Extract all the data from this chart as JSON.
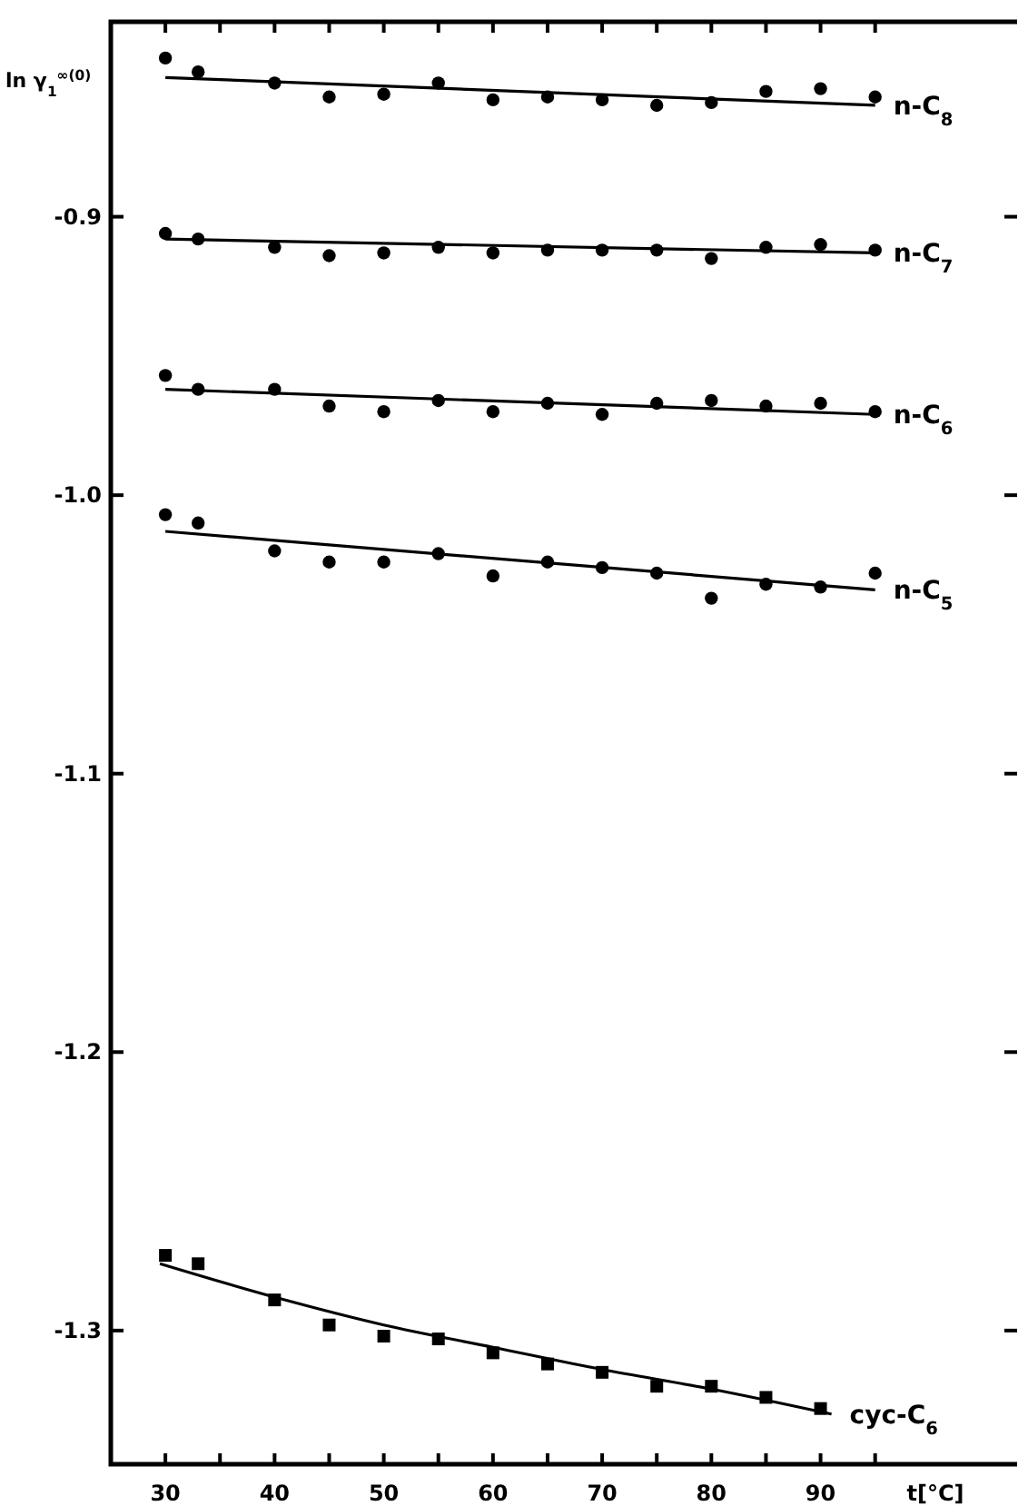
{
  "chart_data": {
    "type": "scatter",
    "xlabel": "t[°C]",
    "ylabel": "ln γ$_{1}$$^{∞(0)}$",
    "x": [
      30,
      33,
      40,
      45,
      50,
      55,
      60,
      65,
      70,
      75,
      80,
      85,
      90,
      95
    ],
    "xlim": [
      25,
      108
    ],
    "ylim": [
      -1.348,
      -0.83
    ],
    "xticks": [
      30,
      {
        "value": 35,
        "label": null
      },
      40,
      {
        "value": 45,
        "label": null
      },
      50,
      {
        "value": 55,
        "label": null
      },
      60,
      {
        "value": 65,
        "label": null
      },
      70,
      {
        "value": 75,
        "label": null
      },
      80,
      {
        "value": 85,
        "label": null
      },
      90,
      {
        "value": 95,
        "label": null
      }
    ],
    "yticks": [
      -0.9,
      {
        "value": -1,
        "label": "-1.0"
      },
      -1.1,
      -1.2,
      -1.3
    ],
    "series": [
      {
        "type": "scatter",
        "marker": "circle",
        "color": "#000000",
        "values": [
          -0.843,
          -0.848,
          -0.852,
          -0.857,
          -0.856,
          -0.852,
          -0.858,
          -0.857,
          -0.858,
          -0.86,
          -0.859,
          -0.855,
          -0.854,
          -0.857
        ]
      },
      {
        "type": "line",
        "name": "n-C$_{8}$",
        "color": "#000000",
        "x": [
          30,
          95
        ],
        "values": [
          -0.85,
          -0.86
        ]
      },
      {
        "type": "scatter",
        "marker": "circle",
        "color": "#000000",
        "values": [
          -0.906,
          -0.908,
          -0.911,
          -0.914,
          -0.913,
          -0.911,
          -0.913,
          -0.912,
          -0.912,
          -0.912,
          -0.915,
          -0.911,
          -0.91,
          -0.912
        ]
      },
      {
        "type": "line",
        "name": "n-C$_{7}$",
        "color": "#000000",
        "x": [
          30,
          95
        ],
        "values": [
          -0.908,
          -0.913
        ]
      },
      {
        "type": "scatter",
        "marker": "circle",
        "color": "#000000",
        "values": [
          -0.957,
          -0.962,
          -0.962,
          -0.968,
          -0.97,
          -0.966,
          -0.97,
          -0.967,
          -0.971,
          -0.967,
          -0.966,
          -0.968,
          -0.967,
          -0.97
        ]
      },
      {
        "type": "line",
        "name": "n-C$_{6}$",
        "color": "#000000",
        "x": [
          30,
          95
        ],
        "values": [
          -0.962,
          -0.971
        ]
      },
      {
        "type": "scatter",
        "marker": "circle",
        "color": "#000000",
        "values": [
          -1.007,
          -1.01,
          -1.02,
          -1.024,
          -1.024,
          -1.021,
          -1.029,
          -1.024,
          -1.026,
          -1.028,
          -1.037,
          -1.032,
          -1.033,
          -1.028
        ]
      },
      {
        "type": "line",
        "name": "n-C$_{5}$",
        "color": "#000000",
        "x": [
          30,
          95
        ],
        "values": [
          -1.013,
          -1.034
        ]
      },
      {
        "type": "scatter",
        "marker": "square",
        "color": "#000000",
        "x": [
          30,
          33,
          40,
          45,
          50,
          55,
          60,
          65,
          70,
          75,
          80,
          85,
          90
        ],
        "values": [
          -1.273,
          -1.276,
          -1.289,
          -1.298,
          -1.302,
          -1.303,
          -1.308,
          -1.312,
          -1.315,
          -1.32,
          -1.32,
          -1.324,
          -1.328
        ]
      },
      {
        "type": "line",
        "name": "cyc-C$_{6}$",
        "color": "#000000",
        "x": [
          29.5,
          40,
          50,
          60,
          70,
          80,
          91
        ],
        "values": [
          -1.276,
          -1.288,
          -1.298,
          -1.306,
          -1.314,
          -1.321,
          -1.33
        ]
      }
    ]
  }
}
